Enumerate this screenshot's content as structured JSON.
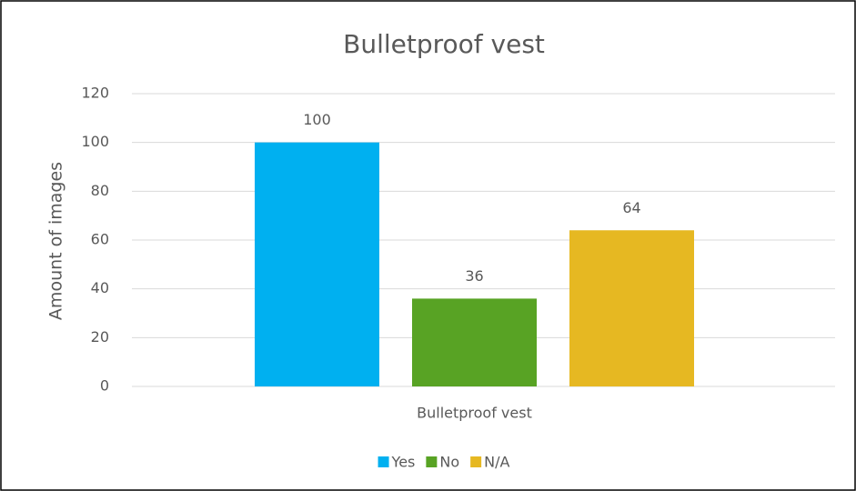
{
  "chart_data": {
    "type": "bar",
    "title": "Bulletproof vest",
    "ylabel": "Amount of images",
    "categories": [
      "Bulletproof vest"
    ],
    "series": [
      {
        "name": "Yes",
        "color": "#00b0f0",
        "values": [
          100
        ]
      },
      {
        "name": "No",
        "color": "#58a324",
        "values": [
          36
        ]
      },
      {
        "name": "N/A",
        "color": "#e6b822",
        "values": [
          64
        ]
      }
    ],
    "ylim": [
      0,
      120
    ],
    "yticks": [
      0,
      20,
      40,
      60,
      80,
      100,
      120
    ],
    "grid": true,
    "legend": "bottom",
    "data_labels": true
  }
}
